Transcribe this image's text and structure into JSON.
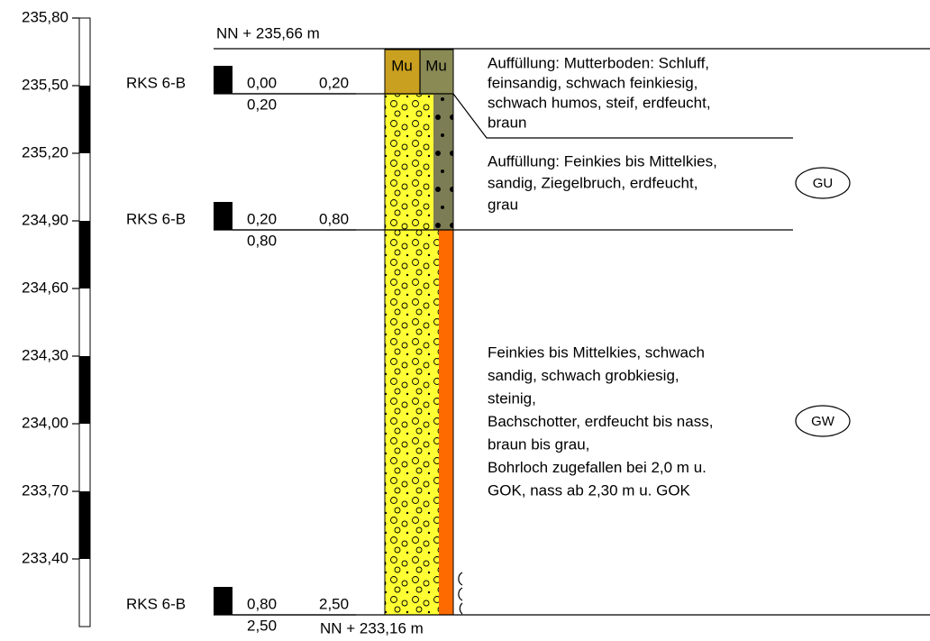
{
  "axis": {
    "labels": [
      "235,80",
      "235,50",
      "235,20",
      "234,90",
      "234,60",
      "234,30",
      "234,00",
      "233,70",
      "233,40"
    ]
  },
  "top_elevation": "NN + 235,66 m",
  "bottom_elevation": "NN + 233,16 m",
  "samples": [
    {
      "name": "RKS 6-B",
      "from": "0,00",
      "to": "0,20",
      "depth": "0,20"
    },
    {
      "name": "RKS 6-B",
      "from": "0,20",
      "to": "0,80",
      "depth": "0,80"
    },
    {
      "name": "RKS 6-B",
      "from": "0,80",
      "to": "2,50",
      "depth": "2,50"
    }
  ],
  "layers": [
    {
      "symbols": [
        "Mu",
        "Mu"
      ],
      "description": [
        "Auffüllung: Mutterboden: Schluff,",
        "feinsandig, schwach feinkiesig,",
        "schwach humos, steif, erdfeucht,",
        "braun"
      ]
    },
    {
      "description": [
        "Auffüllung: Feinkies bis Mittelkies,",
        "sandig, Ziegelbruch, erdfeucht,",
        "grau"
      ],
      "group": "GU"
    },
    {
      "description": [
        "Feinkies bis Mittelkies, schwach",
        "sandig, schwach grobkiesig,",
        "steinig,",
        "Bachschotter, erdfeucht bis nass,",
        "braun bis grau,",
        "Bohrloch zugefallen bei 2,0 m u.",
        "GOK, nass ab 2,30 m u. GOK"
      ],
      "group": "GW"
    }
  ]
}
